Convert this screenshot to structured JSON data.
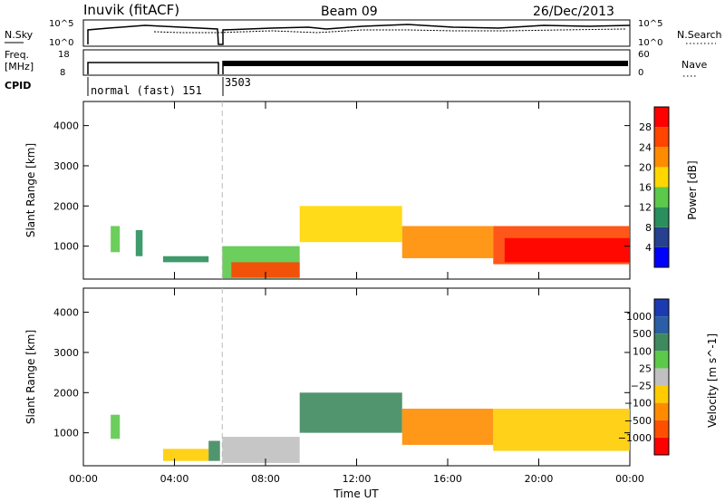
{
  "header": {
    "station": "Inuvik (fitACF)",
    "beam": "Beam 09",
    "date": "26/Dec/2013"
  },
  "top_panel": {
    "left_label_1": "N.Sky",
    "left_label_2": "Freq.",
    "left_label_2_unit": "[MHz]",
    "left_label_3": "CPID",
    "right_label_1": "N.Search",
    "right_label_2": "Nave",
    "nsky_ticks": [
      "10^5",
      "10^0"
    ],
    "nsearch_ticks": [
      "10^5",
      "10^0"
    ],
    "freq_ticks": [
      "18",
      "8"
    ],
    "nave_ticks": [
      "60",
      "0"
    ],
    "cpid_labels": [
      "normal (fast) 151",
      "3503"
    ]
  },
  "colors": {
    "power_scale": [
      "#0000ff",
      "#26418f",
      "#2a8f5c",
      "#5cc94a",
      "#ffd700",
      "#ff8c00",
      "#ff4500",
      "#ff0000"
    ],
    "velocity_scale": [
      "#1d3bb0",
      "#2b5fa5",
      "#3e8a5e",
      "#5cc94a",
      "#c0c0c0",
      "#ffcc00",
      "#ff8c00",
      "#ff5000",
      "#ff0000"
    ]
  },
  "chart_data": [
    {
      "type": "heatmap",
      "title": "",
      "xlabel": "Time UT",
      "ylabel": "Slant Range [km]",
      "x_tick_labels": [
        "00:00",
        "04:00",
        "08:00",
        "12:00",
        "16:00",
        "20:00",
        "00:00"
      ],
      "xlim": [
        0,
        24
      ],
      "ylim": [
        180,
        4600
      ],
      "y_tick_labels": [
        "1000",
        "2000",
        "3000",
        "4000"
      ],
      "y_ticks": [
        1000,
        2000,
        3000,
        4000
      ],
      "colorbar_label": "Power [dB]",
      "colorbar_ticks": [
        "4",
        "8",
        "12",
        "16",
        "20",
        "24",
        "28"
      ],
      "colorbar_range": [
        0,
        32
      ],
      "regions": [
        {
          "t0": 1.2,
          "t1": 1.6,
          "r0": 850,
          "r1": 1500,
          "value": 12
        },
        {
          "t0": 2.3,
          "t1": 2.6,
          "r0": 750,
          "r1": 1400,
          "value": 8
        },
        {
          "t0": 3.5,
          "t1": 5.5,
          "r0": 600,
          "r1": 750,
          "value": 10
        },
        {
          "t0": 6.1,
          "t1": 9.5,
          "r0": 200,
          "r1": 1000,
          "value": 14
        },
        {
          "t0": 6.5,
          "t1": 9.5,
          "r0": 220,
          "r1": 600,
          "value": 26
        },
        {
          "t0": 9.5,
          "t1": 14.0,
          "r0": 1100,
          "r1": 2000,
          "value": 18
        },
        {
          "t0": 14.0,
          "t1": 18.0,
          "r0": 700,
          "r1": 1500,
          "value": 20
        },
        {
          "t0": 18.0,
          "t1": 24.0,
          "r0": 550,
          "r1": 1500,
          "value": 24
        },
        {
          "t0": 18.5,
          "t1": 24.0,
          "r0": 600,
          "r1": 1200,
          "value": 30
        }
      ]
    },
    {
      "type": "heatmap",
      "title": "",
      "xlabel": "Time UT",
      "ylabel": "Slant Range [km]",
      "x_tick_labels": [
        "00:00",
        "04:00",
        "08:00",
        "12:00",
        "16:00",
        "20:00",
        "00:00"
      ],
      "xlim": [
        0,
        24
      ],
      "ylim": [
        180,
        4600
      ],
      "y_tick_labels": [
        "1000",
        "2000",
        "3000",
        "4000"
      ],
      "y_ticks": [
        1000,
        2000,
        3000,
        4000
      ],
      "colorbar_label": "Velocity [m s^-1]",
      "colorbar_ticks": [
        "1000",
        "500",
        "100",
        "25",
        "−25",
        "−100",
        "−500",
        "−1000"
      ],
      "regions": [
        {
          "t0": 1.2,
          "t1": 1.6,
          "r0": 850,
          "r1": 1450,
          "value": 50
        },
        {
          "t0": 3.5,
          "t1": 5.5,
          "r0": 300,
          "r1": 600,
          "value": -100
        },
        {
          "t0": 5.5,
          "t1": 6.0,
          "r0": 300,
          "r1": 800,
          "value": 300
        },
        {
          "t0": 6.1,
          "t1": 9.5,
          "r0": 250,
          "r1": 900,
          "value": 0
        },
        {
          "t0": 9.5,
          "t1": 14.0,
          "r0": 1000,
          "r1": 2000,
          "value": 300
        },
        {
          "t0": 14.0,
          "t1": 18.0,
          "r0": 700,
          "r1": 1600,
          "value": -200
        },
        {
          "t0": 18.0,
          "t1": 24.0,
          "r0": 550,
          "r1": 1600,
          "value": -50
        }
      ]
    }
  ]
}
